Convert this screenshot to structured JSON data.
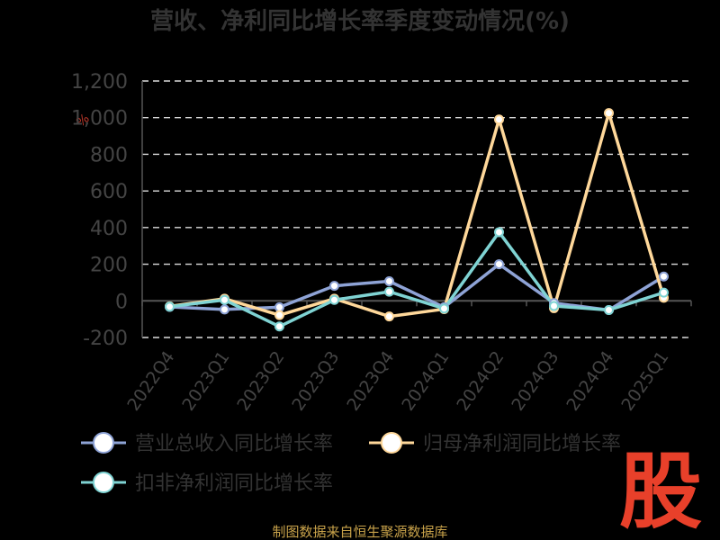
{
  "chart_data": {
    "type": "line",
    "title": "营收、净利同比增长率季度变动情况(%)",
    "categories": [
      "2022Q4",
      "2023Q1",
      "2023Q2",
      "2023Q3",
      "2023Q4",
      "2024Q1",
      "2024Q2",
      "2024Q3",
      "2024Q4",
      "2025Q1"
    ],
    "y_ticks": [
      "1,200",
      "1,000",
      "800",
      "600",
      "400",
      "200",
      "0",
      "-200"
    ],
    "ylim": [
      -200,
      1200
    ],
    "grid": true,
    "legend_position": "bottom",
    "series": [
      {
        "name": "营业总收入同比增长率",
        "color": "#8ea3d6",
        "values": [
          -33,
          -47,
          -35,
          82,
          107,
          -35,
          200,
          -12,
          -50,
          133
        ]
      },
      {
        "name": "归母净利润同比增长率",
        "color": "#ffd89a",
        "values": [
          -30,
          12,
          -78,
          12,
          -85,
          -45,
          990,
          -40,
          1025,
          17
        ]
      },
      {
        "name": "扣非净利润同比增长率",
        "color": "#7fd3d3",
        "values": [
          -32,
          5,
          -140,
          5,
          50,
          -42,
          375,
          -28,
          -50,
          45
        ]
      }
    ]
  },
  "source": "制图数据来自恒生聚源数据库",
  "logo_char": "股",
  "stray_mark": "%"
}
